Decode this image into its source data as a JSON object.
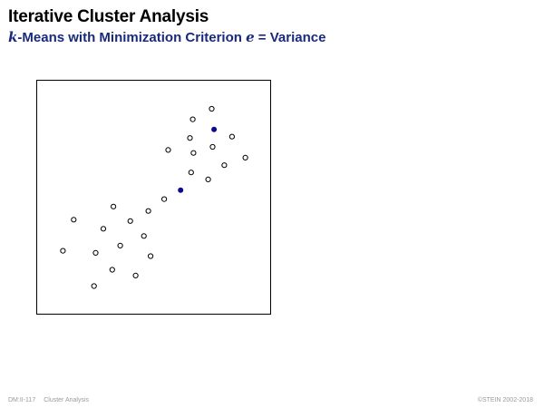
{
  "slide": {
    "title": "Iterative Cluster Analysis",
    "subtitle": {
      "k_symbol": "k",
      "text_before": "-Means with Minimization Criterion ",
      "e_symbol": "e",
      "text_after": " = Variance"
    }
  },
  "footer": {
    "slide_number": "DM:II-117",
    "section": "Cluster Analysis",
    "copyright": "©STEIN 2002-2018"
  },
  "chart_data": {
    "type": "scatter",
    "xlim": [
      0,
      1
    ],
    "ylim": [
      0,
      1
    ],
    "grid": false,
    "colors": {
      "data_point_stroke": "#000000",
      "centroid_fill": "#0a0a8c"
    },
    "data_points": [
      {
        "x": 0.748,
        "y": 0.878
      },
      {
        "x": 0.667,
        "y": 0.833
      },
      {
        "x": 0.655,
        "y": 0.753
      },
      {
        "x": 0.835,
        "y": 0.759
      },
      {
        "x": 0.752,
        "y": 0.715
      },
      {
        "x": 0.562,
        "y": 0.702
      },
      {
        "x": 0.67,
        "y": 0.689
      },
      {
        "x": 0.892,
        "y": 0.669
      },
      {
        "x": 0.802,
        "y": 0.637
      },
      {
        "x": 0.66,
        "y": 0.606
      },
      {
        "x": 0.733,
        "y": 0.576
      },
      {
        "x": 0.545,
        "y": 0.492
      },
      {
        "x": 0.477,
        "y": 0.441
      },
      {
        "x": 0.328,
        "y": 0.46
      },
      {
        "x": 0.158,
        "y": 0.404
      },
      {
        "x": 0.4,
        "y": 0.398
      },
      {
        "x": 0.285,
        "y": 0.365
      },
      {
        "x": 0.458,
        "y": 0.334
      },
      {
        "x": 0.357,
        "y": 0.293
      },
      {
        "x": 0.112,
        "y": 0.271
      },
      {
        "x": 0.252,
        "y": 0.262
      },
      {
        "x": 0.487,
        "y": 0.248
      },
      {
        "x": 0.323,
        "y": 0.19
      },
      {
        "x": 0.423,
        "y": 0.165
      },
      {
        "x": 0.245,
        "y": 0.12
      }
    ],
    "centroids": [
      {
        "x": 0.758,
        "y": 0.79
      },
      {
        "x": 0.615,
        "y": 0.53
      }
    ]
  }
}
